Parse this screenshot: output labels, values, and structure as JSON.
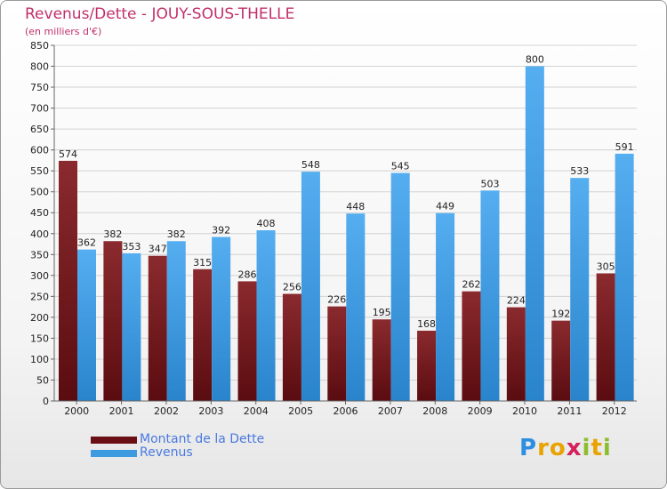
{
  "title": "Revenus/Dette - JOUY-SOUS-THELLE",
  "subtitle": "(en milliers d'€)",
  "logo": [
    "P",
    "r",
    "o",
    "x",
    "i",
    "t",
    "i"
  ],
  "colors": {
    "debt": "#7a1a1f",
    "revenue": "#3f9be0",
    "title": "#c0306a",
    "legend_text": "#4a79e0"
  },
  "legend": {
    "debt": "Montant de la Dette",
    "revenue": "Revenus"
  },
  "chart_data": {
    "type": "bar",
    "title": "Revenus/Dette - JOUY-SOUS-THELLE",
    "ylabel": "(en milliers d'€)",
    "xlabel": "",
    "categories": [
      "2000",
      "2001",
      "2002",
      "2003",
      "2004",
      "2005",
      "2006",
      "2007",
      "2008",
      "2009",
      "2010",
      "2011",
      "2012"
    ],
    "series": [
      {
        "name": "Montant de la Dette",
        "values": [
          574,
          382,
          347,
          315,
          286,
          256,
          226,
          195,
          168,
          262,
          224,
          192,
          305
        ]
      },
      {
        "name": "Revenus",
        "values": [
          362,
          353,
          382,
          392,
          408,
          548,
          448,
          545,
          449,
          503,
          800,
          533,
          591
        ]
      }
    ],
    "ylim": [
      0,
      850
    ],
    "yticks": [
      0,
      50,
      100,
      150,
      200,
      250,
      300,
      350,
      400,
      450,
      500,
      550,
      600,
      650,
      700,
      750,
      800,
      850
    ],
    "grid": true,
    "legend_position": "bottom-left"
  }
}
